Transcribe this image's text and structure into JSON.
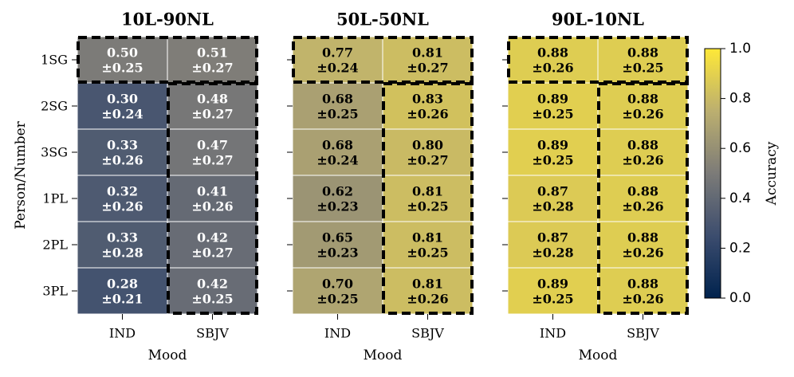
{
  "chart_data": {
    "type": "heatmap",
    "rows": [
      "1SG",
      "2SG",
      "3SG",
      "1PL",
      "2PL",
      "3PL"
    ],
    "columns": [
      "IND",
      "SBJV"
    ],
    "ylabel": "Person/Number",
    "xlabel": "Mood",
    "colorbar": {
      "label": "Accuracy",
      "range": [
        0.0,
        1.0
      ],
      "ticks": [
        "0.0",
        "0.2",
        "0.4",
        "0.6",
        "0.8",
        "1.0"
      ],
      "colormap": "cividis"
    },
    "panels": [
      {
        "title": "10L-90NL",
        "means": [
          [
            0.5,
            0.51
          ],
          [
            0.3,
            0.48
          ],
          [
            0.33,
            0.47
          ],
          [
            0.32,
            0.41
          ],
          [
            0.33,
            0.42
          ],
          [
            0.28,
            0.42
          ]
        ],
        "labels": [
          [
            "0.50",
            "±0.25",
            "0.51",
            "±0.27"
          ],
          [
            "0.30",
            "±0.24",
            "0.48",
            "±0.27"
          ],
          [
            "0.33",
            "±0.26",
            "0.47",
            "±0.27"
          ],
          [
            "0.32",
            "±0.26",
            "0.41",
            "±0.26"
          ],
          [
            "0.33",
            "±0.28",
            "0.42",
            "±0.27"
          ],
          [
            "0.28",
            "±0.21",
            "0.42",
            "±0.25"
          ]
        ]
      },
      {
        "title": "50L-50NL",
        "means": [
          [
            0.77,
            0.81
          ],
          [
            0.68,
            0.83
          ],
          [
            0.68,
            0.8
          ],
          [
            0.62,
            0.81
          ],
          [
            0.65,
            0.81
          ],
          [
            0.7,
            0.81
          ]
        ],
        "labels": [
          [
            "0.77",
            "±0.24",
            "0.81",
            "±0.27"
          ],
          [
            "0.68",
            "±0.25",
            "0.83",
            "±0.26"
          ],
          [
            "0.68",
            "±0.24",
            "0.80",
            "±0.27"
          ],
          [
            "0.62",
            "±0.23",
            "0.81",
            "±0.25"
          ],
          [
            "0.65",
            "±0.23",
            "0.81",
            "±0.25"
          ],
          [
            "0.70",
            "±0.25",
            "0.81",
            "±0.26"
          ]
        ]
      },
      {
        "title": "90L-10NL",
        "means": [
          [
            0.88,
            0.88
          ],
          [
            0.89,
            0.88
          ],
          [
            0.89,
            0.88
          ],
          [
            0.87,
            0.88
          ],
          [
            0.87,
            0.88
          ],
          [
            0.89,
            0.88
          ]
        ],
        "labels": [
          [
            "0.88",
            "±0.26",
            "0.88",
            "±0.25"
          ],
          [
            "0.89",
            "±0.25",
            "0.88",
            "±0.26"
          ],
          [
            "0.89",
            "±0.25",
            "0.88",
            "±0.26"
          ],
          [
            "0.87",
            "±0.28",
            "0.88",
            "±0.26"
          ],
          [
            "0.87",
            "±0.28",
            "0.88",
            "±0.26"
          ],
          [
            "0.89",
            "±0.25",
            "0.88",
            "±0.26"
          ]
        ]
      }
    ]
  }
}
